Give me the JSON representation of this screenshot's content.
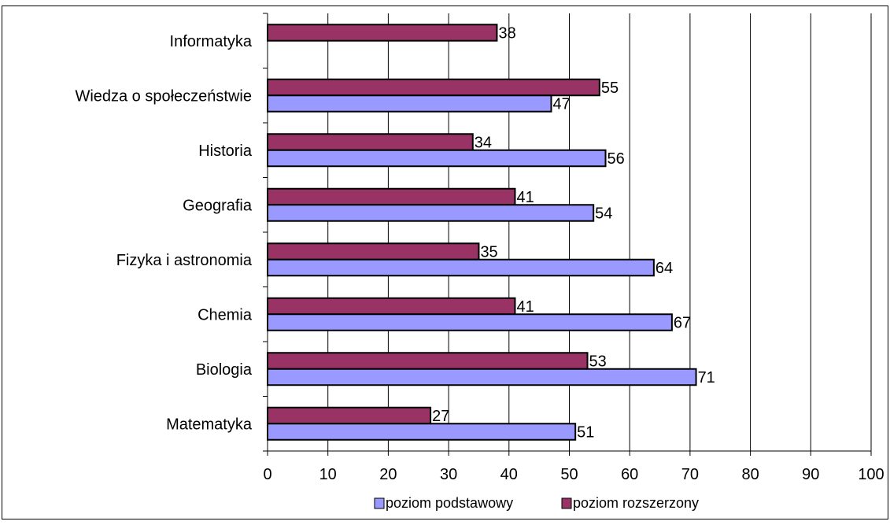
{
  "chart_data": {
    "type": "bar",
    "orientation": "horizontal",
    "categories": [
      "Matematyka",
      "Biologia",
      "Chemia",
      "Fizyka i astronomia",
      "Geografia",
      "Historia",
      "Wiedza o społeczeństwie",
      "Informatyka"
    ],
    "series": [
      {
        "name": "poziom podstawowy",
        "color": "#9999ff",
        "values": [
          51,
          71,
          67,
          64,
          54,
          56,
          47,
          null
        ]
      },
      {
        "name": "poziom rozszerzony",
        "color": "#993366",
        "values": [
          27,
          53,
          41,
          35,
          41,
          34,
          55,
          38
        ]
      }
    ],
    "xlim": [
      0,
      100
    ],
    "xticks": [
      0,
      10,
      20,
      30,
      40,
      50,
      60,
      70,
      80,
      90,
      100
    ],
    "grid": "vertical",
    "legend_position": "bottom",
    "data_labels": true
  }
}
